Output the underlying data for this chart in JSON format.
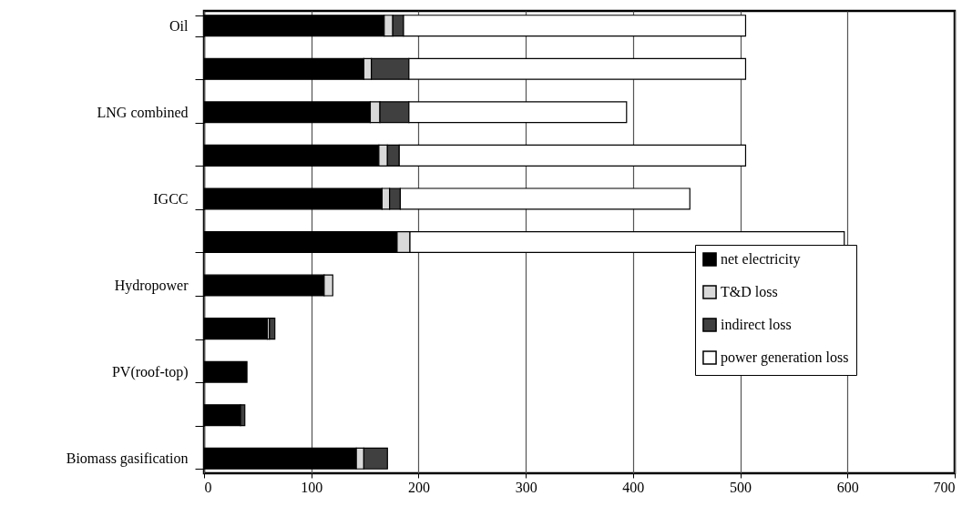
{
  "chart_data": {
    "type": "bar",
    "orientation": "horizontal",
    "stacked": true,
    "categories": [
      "Oil",
      null,
      "LNG combined",
      null,
      "IGCC",
      null,
      "Hydropower",
      null,
      "PV(roof-top)",
      null,
      "Biomass gasification"
    ],
    "series": [
      {
        "name": "net electricity",
        "color": "#000000",
        "values": [
          168,
          149,
          155,
          163,
          166,
          180,
          112,
          59,
          40,
          34,
          142
        ]
      },
      {
        "name": "T&D loss",
        "color": "#d9d9d9",
        "values": [
          8,
          7,
          9,
          8,
          7,
          12,
          8,
          2,
          0,
          0,
          7
        ]
      },
      {
        "name": "indirect loss",
        "color": "#404040",
        "values": [
          10,
          35,
          27,
          11,
          10,
          0,
          0,
          5,
          0,
          4,
          22
        ]
      },
      {
        "name": "power generation loss",
        "color": "#ffffff",
        "values": [
          319,
          314,
          203,
          323,
          270,
          405,
          0,
          0,
          0,
          0,
          0
        ]
      }
    ],
    "xlim": [
      0,
      700
    ],
    "xticks": [
      0,
      100,
      200,
      300,
      400,
      500,
      600,
      700
    ],
    "grid": "x",
    "legend": "bottom right"
  }
}
